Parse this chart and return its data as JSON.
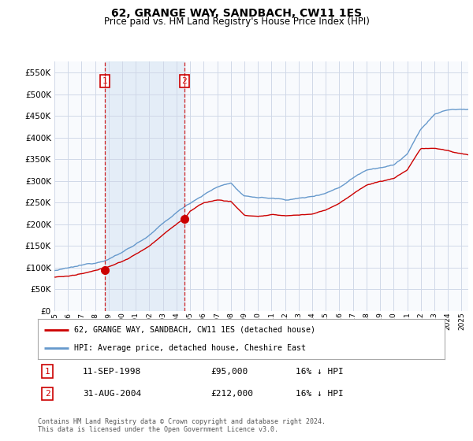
{
  "title": "62, GRANGE WAY, SANDBACH, CW11 1ES",
  "subtitle": "Price paid vs. HM Land Registry's House Price Index (HPI)",
  "ylim": [
    0,
    575000
  ],
  "yticks": [
    0,
    50000,
    100000,
    150000,
    200000,
    250000,
    300000,
    350000,
    400000,
    450000,
    500000,
    550000
  ],
  "background_color": "#ffffff",
  "plot_bg_color": "#f8fafd",
  "shade_color": "#dce8f5",
  "grid_color": "#d0d8e8",
  "hpi_color": "#6699cc",
  "price_color": "#cc0000",
  "transaction1_x": 1998.708,
  "transaction1_price": 95000,
  "transaction2_x": 2004.583,
  "transaction2_price": 212000,
  "legend_line1": "62, GRANGE WAY, SANDBACH, CW11 1ES (detached house)",
  "legend_line2": "HPI: Average price, detached house, Cheshire East",
  "table_row1": [
    "1",
    "11-SEP-1998",
    "£95,000",
    "16% ↓ HPI"
  ],
  "table_row2": [
    "2",
    "31-AUG-2004",
    "£212,000",
    "16% ↓ HPI"
  ],
  "footnote": "Contains HM Land Registry data © Crown copyright and database right 2024.\nThis data is licensed under the Open Government Licence v3.0.",
  "xstart": 1995.0,
  "xend": 2025.5
}
